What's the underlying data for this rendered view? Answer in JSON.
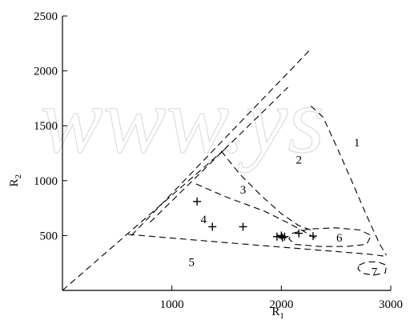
{
  "watermark": "www.ys",
  "chart_data": {
    "type": "scatter",
    "title": "",
    "xlabel": "R1",
    "ylabel": "R2",
    "xlim": [
      0,
      3000
    ],
    "ylim": [
      0,
      2500
    ],
    "x_ticks": [
      1000,
      2000,
      3000
    ],
    "x_tick_labels": [
      "1000",
      "2000",
      "3000"
    ],
    "y_ticks": [
      500,
      1000,
      1500,
      2000,
      2500
    ],
    "y_tick_labels": [
      "500",
      "1000",
      "1500",
      "2000",
      "2500"
    ],
    "grid": false,
    "points": [
      {
        "x": 1230,
        "y": 810
      },
      {
        "x": 1370,
        "y": 580
      },
      {
        "x": 1650,
        "y": 580
      },
      {
        "x": 1960,
        "y": 490
      },
      {
        "x": 2000,
        "y": 500
      },
      {
        "x": 2010,
        "y": 480
      },
      {
        "x": 2030,
        "y": 490
      },
      {
        "x": 2160,
        "y": 520
      },
      {
        "x": 2290,
        "y": 495
      }
    ],
    "region_labels": [
      {
        "text": "1",
        "x": 2690,
        "y": 1350
      },
      {
        "text": "2",
        "x": 2160,
        "y": 1190
      },
      {
        "text": "3",
        "x": 1650,
        "y": 920
      },
      {
        "text": "4",
        "x": 1290,
        "y": 650
      },
      {
        "text": "5",
        "x": 1180,
        "y": 260
      },
      {
        "text": "6",
        "x": 2530,
        "y": 480
      },
      {
        "text": "7",
        "x": 2850,
        "y": 170
      }
    ],
    "boundaries": [
      {
        "name": "diagonal",
        "points": [
          [
            0,
            0
          ],
          [
            1500,
            1300
          ]
        ]
      },
      {
        "name": "upper-dashed",
        "points": [
          [
            630,
            500
          ],
          [
            2270,
            2200
          ]
        ]
      },
      {
        "name": "inner-dashed",
        "points": [
          [
            800,
            620
          ],
          [
            2060,
            1850
          ]
        ]
      },
      {
        "name": "boundary-1",
        "points": [
          [
            2270,
            1680
          ],
          [
            2380,
            1580
          ],
          [
            2510,
            1300
          ],
          [
            2650,
            980
          ],
          [
            2780,
            680
          ],
          [
            2900,
            420
          ],
          [
            2960,
            320
          ]
        ]
      },
      {
        "name": "boundary-2",
        "points": [
          [
            1450,
            1270
          ],
          [
            1620,
            1060
          ],
          [
            1820,
            860
          ],
          [
            2000,
            700
          ],
          [
            2160,
            590
          ],
          [
            2300,
            540
          ]
        ]
      },
      {
        "name": "boundary-3",
        "points": [
          [
            1220,
            970
          ],
          [
            1500,
            850
          ],
          [
            1850,
            720
          ],
          [
            2050,
            620
          ],
          [
            2240,
            520
          ],
          [
            2320,
            470
          ]
        ]
      },
      {
        "name": "boundary-5",
        "points": [
          [
            600,
            510
          ],
          [
            1200,
            460
          ],
          [
            1800,
            410
          ],
          [
            2300,
            370
          ],
          [
            2800,
            330
          ],
          [
            2960,
            310
          ]
        ]
      }
    ],
    "regions": [
      {
        "name": "region-6",
        "points": [
          [
            2100,
            520
          ],
          [
            2250,
            560
          ],
          [
            2500,
            570
          ],
          [
            2720,
            550
          ],
          [
            2820,
            500
          ],
          [
            2780,
            420
          ],
          [
            2600,
            400
          ],
          [
            2350,
            400
          ],
          [
            2120,
            420
          ],
          [
            2070,
            470
          ],
          [
            2100,
            520
          ]
        ]
      },
      {
        "name": "region-7",
        "points": [
          [
            2710,
            230
          ],
          [
            2780,
            260
          ],
          [
            2880,
            260
          ],
          [
            2960,
            230
          ],
          [
            2950,
            160
          ],
          [
            2850,
            140
          ],
          [
            2740,
            155
          ],
          [
            2700,
            195
          ],
          [
            2710,
            230
          ]
        ]
      }
    ]
  }
}
